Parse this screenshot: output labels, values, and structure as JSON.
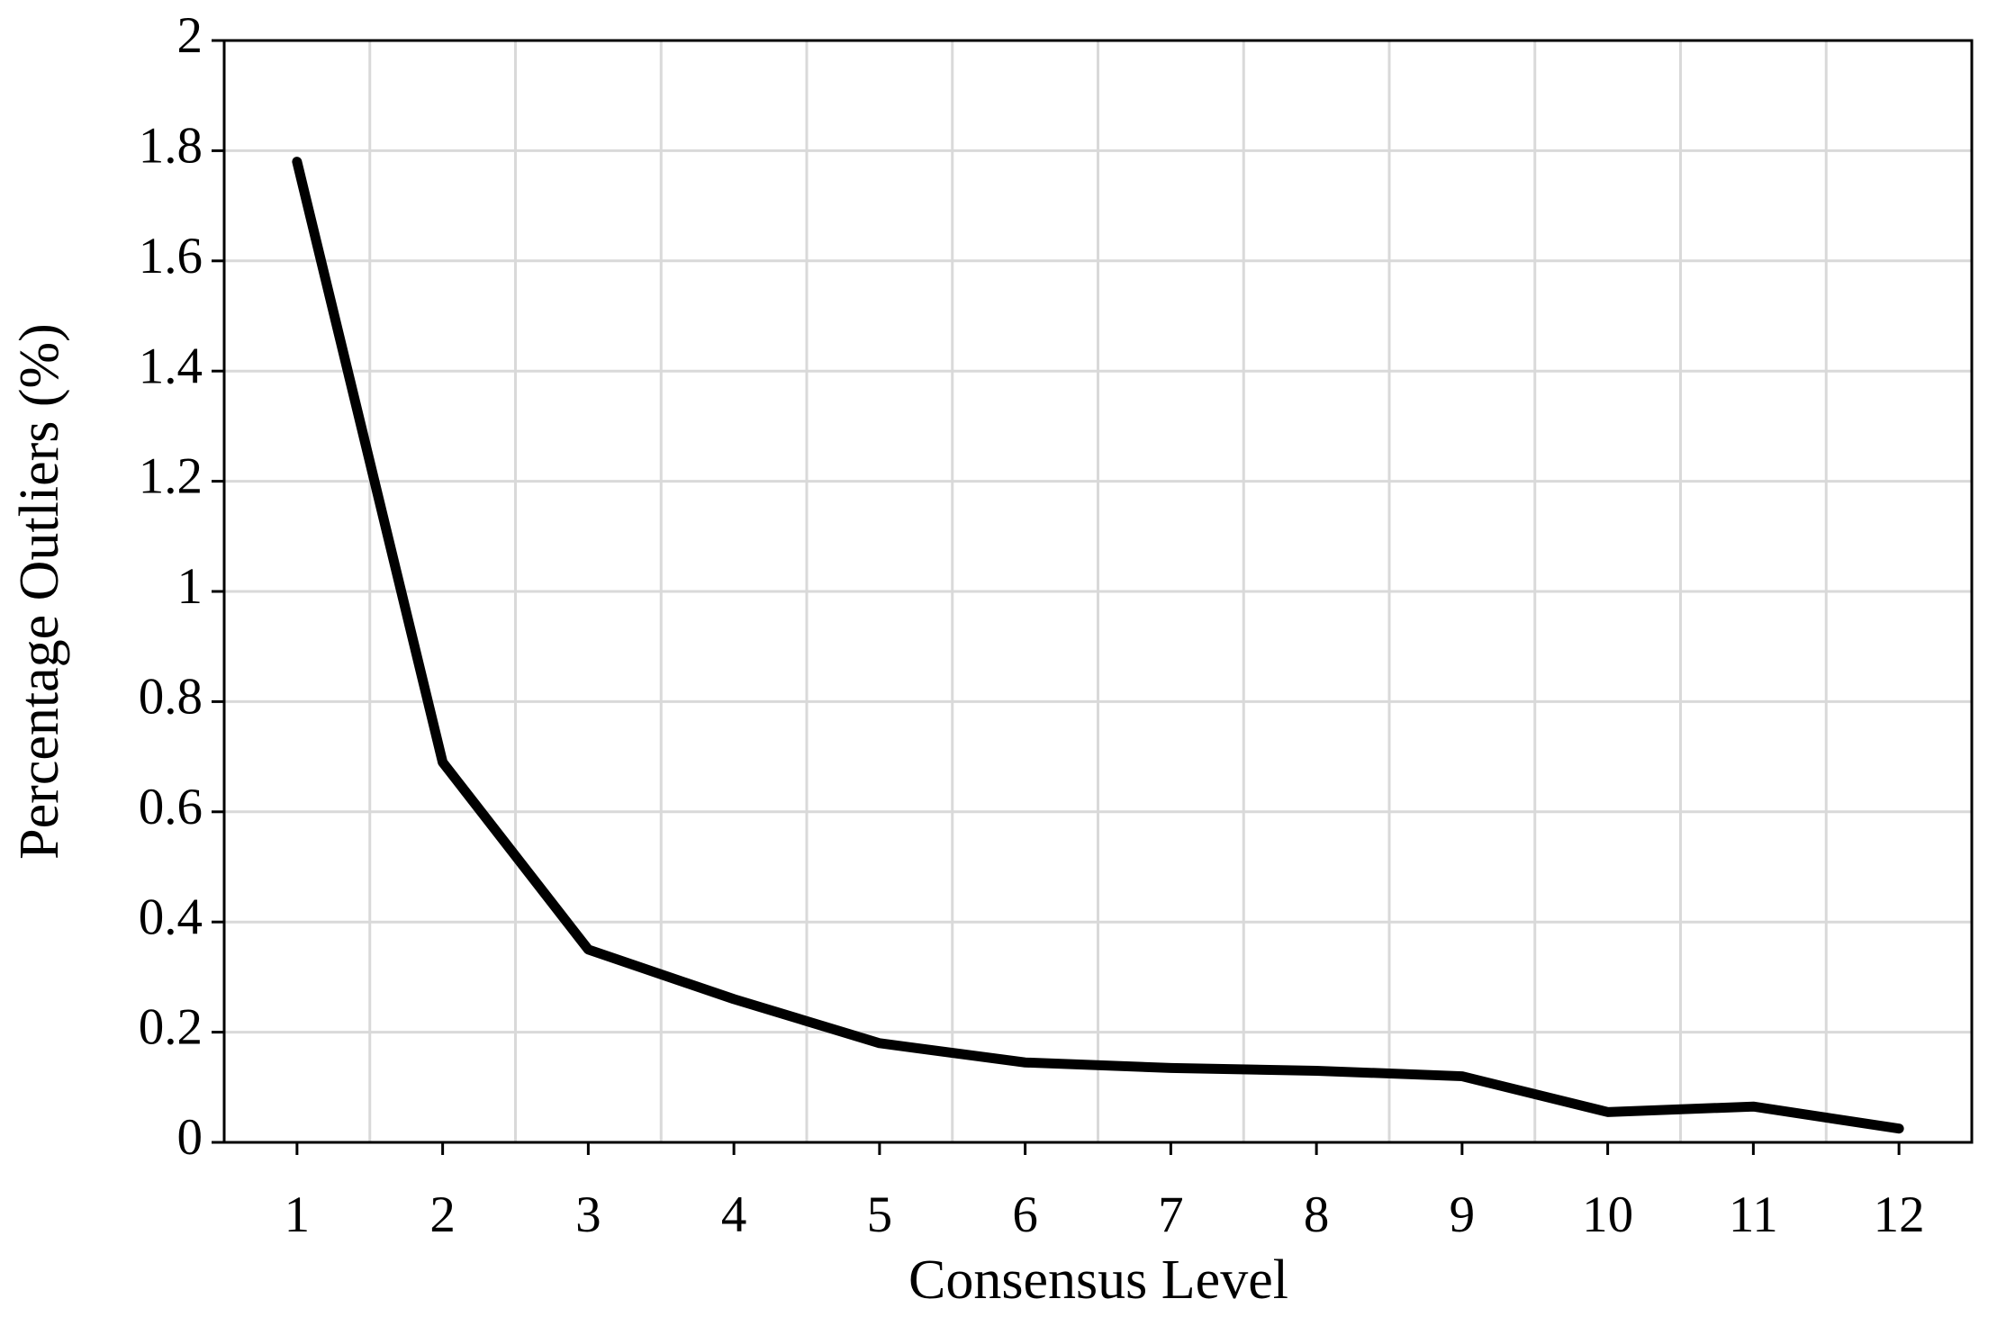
{
  "chart_data": {
    "type": "line",
    "x_label": "Consensus Level",
    "y_label": "Percentage Outliers (%)",
    "categories": [
      "1",
      "2",
      "3",
      "4",
      "5",
      "6",
      "7",
      "8",
      "9",
      "10",
      "11",
      "12"
    ],
    "values": [
      1.78,
      0.69,
      0.35,
      0.26,
      0.18,
      0.145,
      0.135,
      0.13,
      0.12,
      0.055,
      0.065,
      0.025
    ],
    "color": "#000000",
    "ylim": [
      0,
      2
    ],
    "yticks": [
      0,
      0.2,
      0.4,
      0.6,
      0.8,
      1,
      1.2,
      1.4,
      1.6,
      1.8,
      2
    ],
    "grid": true
  }
}
